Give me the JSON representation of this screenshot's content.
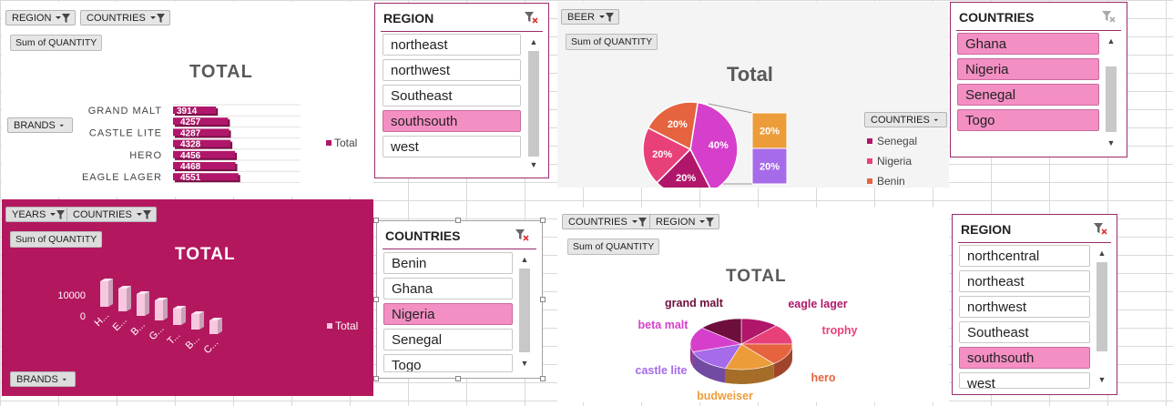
{
  "chart1": {
    "filters": [
      "REGION",
      "COUNTRIES"
    ],
    "sum_label": "Sum of QUANTITY",
    "title": "TOTAL",
    "row_field": "BRANDS",
    "legend": "Total",
    "chart_data": {
      "type": "bar",
      "categories": [
        "GRAND MALT",
        "",
        "CASTLE LITE",
        "",
        "HERO",
        "",
        "EAGLE LAGER"
      ],
      "values": [
        3914,
        4257,
        4287,
        4328,
        4456,
        4468,
        4551
      ],
      "value_labels": [
        "3914",
        "4257",
        "4287",
        "4328",
        "4456",
        "4468",
        "4551"
      ],
      "series": [
        {
          "name": "Total",
          "values": [
            3914,
            4257,
            4287,
            4328,
            4456,
            4468,
            4551
          ]
        }
      ]
    },
    "colors": {
      "bar": "#b0176a"
    }
  },
  "slicer_region1": {
    "header": "REGION",
    "items": [
      {
        "label": "northeast",
        "selected": false
      },
      {
        "label": "northwest",
        "selected": false
      },
      {
        "label": "Southeast",
        "selected": false
      },
      {
        "label": "southsouth",
        "selected": true
      },
      {
        "label": "west",
        "selected": false
      }
    ]
  },
  "chart2": {
    "filters": [
      "BEER"
    ],
    "sum_label": "Sum of QUANTITY",
    "title": "Total",
    "legend_field": "COUNTRIES",
    "legend": [
      "Senegal",
      "Nigeria",
      "Benin"
    ],
    "chart_data": {
      "type": "pie",
      "slices": [
        {
          "label": "40%",
          "value": 40,
          "color": "#d63fcb"
        },
        {
          "label": "20%",
          "value": 20,
          "color": "#b0176a"
        },
        {
          "label": "20%",
          "value": 20,
          "color": "#e8417a"
        },
        {
          "label": "20%",
          "value": 20,
          "color": "#e5633f"
        }
      ],
      "secondary_bar": [
        {
          "label": "20%",
          "value": 20,
          "color": "#ed9c3a"
        },
        {
          "label": "20%",
          "value": 20,
          "color": "#a56be8"
        }
      ]
    },
    "colors": {
      "Senegal": "#b0176a",
      "Nigeria": "#e8417a",
      "Benin": "#e5633f"
    }
  },
  "slicer_countries1": {
    "header": "COUNTRIES",
    "items": [
      {
        "label": "Ghana",
        "selected": true
      },
      {
        "label": "Nigeria",
        "selected": true
      },
      {
        "label": "Senegal",
        "selected": true
      },
      {
        "label": "Togo",
        "selected": true
      }
    ]
  },
  "chart3": {
    "filters": [
      "YEARS",
      "COUNTRIES"
    ],
    "sum_label": "Sum of QUANTITY",
    "title": "TOTAL",
    "row_field": "BRANDS",
    "legend": "Total",
    "chart_data": {
      "type": "bar",
      "categories": [
        "H...",
        "E...",
        "B...",
        "G...",
        "T...",
        "B...",
        "C..."
      ],
      "y_ticks": [
        "10000",
        "0"
      ],
      "relative_heights": [
        1.0,
        0.85,
        0.8,
        0.7,
        0.5,
        0.45,
        0.35
      ]
    },
    "colors": {
      "background": "#b3185f",
      "bar": "#f6c7df"
    }
  },
  "slicer_countries2": {
    "header": "COUNTRIES",
    "items": [
      {
        "label": "Benin",
        "selected": false
      },
      {
        "label": "Ghana",
        "selected": false
      },
      {
        "label": "Nigeria",
        "selected": true
      },
      {
        "label": "Senegal",
        "selected": false
      },
      {
        "label": "Togo",
        "selected": false
      }
    ]
  },
  "chart4": {
    "filters": [
      "COUNTRIES",
      "REGION"
    ],
    "sum_label": "Sum of QUANTITY",
    "title": "TOTAL",
    "chart_data": {
      "type": "pie",
      "slices": [
        {
          "label": "eagle lager",
          "value": 12,
          "color": "#b0176a"
        },
        {
          "label": "trophy",
          "value": 13,
          "color": "#e8417a"
        },
        {
          "label": "hero",
          "value": 14,
          "color": "#e5633f"
        },
        {
          "label": "budweiser",
          "value": 16,
          "color": "#ed9c3a"
        },
        {
          "label": "castle lite",
          "value": 15,
          "color": "#a56be8"
        },
        {
          "label": "beta malt",
          "value": 16,
          "color": "#d63fcb"
        },
        {
          "label": "grand malt",
          "value": 14,
          "color": "#6e0e3c"
        }
      ]
    },
    "label_colors": {
      "grand malt": "#6e0e3c",
      "eagle lager": "#b0176a",
      "trophy": "#e8417a",
      "hero": "#e5633f",
      "budweiser": "#ed9c3a",
      "castle lite": "#a56be8",
      "beta malt": "#d63fcb"
    }
  },
  "slicer_region2": {
    "header": "REGION",
    "items": [
      {
        "label": "northcentral",
        "selected": false
      },
      {
        "label": "northeast",
        "selected": false
      },
      {
        "label": "northwest",
        "selected": false
      },
      {
        "label": "Southeast",
        "selected": false
      },
      {
        "label": "southsouth",
        "selected": true
      },
      {
        "label": "west",
        "selected": false
      }
    ]
  }
}
